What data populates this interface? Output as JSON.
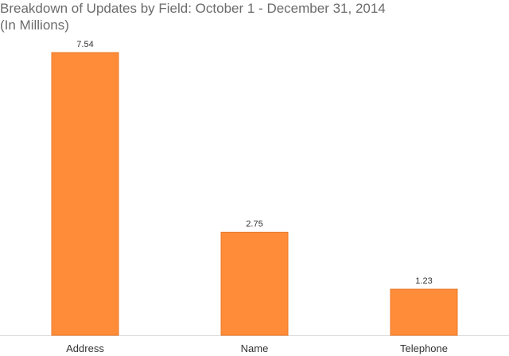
{
  "chart_data": {
    "type": "bar",
    "title": "Breakdown of Updates by Field: October 1 - December 31, 2014",
    "subtitle": "(In Millions)",
    "categories": [
      "Address",
      "Name",
      "Telephone"
    ],
    "values": [
      7.54,
      2.75,
      1.23
    ],
    "value_labels": [
      "7.54",
      "2.75",
      "1.23"
    ],
    "xlabel": "",
    "ylabel": "",
    "ylim": [
      0,
      7.54
    ],
    "grid": false,
    "legend": "none",
    "colors": {
      "bar_fill": "#FF8C38",
      "bar_stroke": "#E8782A",
      "axis": "#d9d9d9"
    }
  }
}
